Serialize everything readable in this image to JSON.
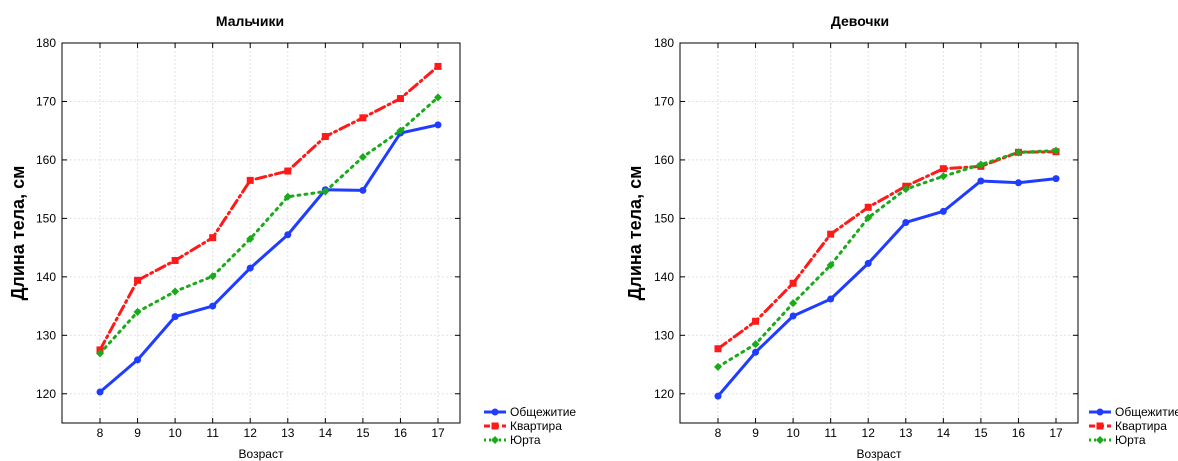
{
  "chart_data": [
    {
      "type": "line",
      "title": "Мальчики",
      "xlabel": "Возраст",
      "ylabel": "Длина тела, см",
      "categories": [
        "8",
        "9",
        "10",
        "11",
        "12",
        "13",
        "14",
        "15",
        "16",
        "17"
      ],
      "ylim": [
        115,
        180
      ],
      "yticks": [
        120,
        130,
        140,
        150,
        160,
        170,
        180
      ],
      "grid": true,
      "legend_position": "bottom-right",
      "series": [
        {
          "name": "Общежитие",
          "color": "#1f3cff",
          "values": [
            120.3,
            125.8,
            133.2,
            135.0,
            141.5,
            147.2,
            154.9,
            154.8,
            164.6,
            166.0
          ]
        },
        {
          "name": "Квартира",
          "color": "#ff1a1a",
          "values": [
            127.5,
            139.4,
            142.8,
            146.7,
            156.5,
            158.1,
            164.0,
            167.2,
            170.5,
            176.0
          ]
        },
        {
          "name": "Юрта",
          "color": "#1aaa1a",
          "values": [
            126.9,
            134.0,
            137.5,
            140.1,
            146.5,
            153.7,
            154.6,
            160.5,
            165.0,
            170.7
          ]
        }
      ]
    },
    {
      "type": "line",
      "title": "Девочки",
      "xlabel": "Возраст",
      "ylabel": "Длина тела, см",
      "categories": [
        "8",
        "9",
        "10",
        "11",
        "12",
        "13",
        "14",
        "15",
        "16",
        "17"
      ],
      "ylim": [
        115,
        180
      ],
      "yticks": [
        120,
        130,
        140,
        150,
        160,
        170,
        180
      ],
      "grid": true,
      "legend_position": "bottom-right",
      "series": [
        {
          "name": "Общежитие",
          "color": "#1f3cff",
          "values": [
            119.6,
            127.1,
            133.3,
            136.2,
            142.3,
            149.3,
            151.2,
            156.4,
            156.1,
            156.8
          ]
        },
        {
          "name": "Квартира",
          "color": "#ff1a1a",
          "values": [
            127.7,
            132.4,
            138.9,
            147.3,
            151.9,
            155.5,
            158.5,
            158.9,
            161.3,
            161.4
          ]
        },
        {
          "name": "Юрта",
          "color": "#1aaa1a",
          "values": [
            124.6,
            128.5,
            135.5,
            142.0,
            150.1,
            155.0,
            157.2,
            159.2,
            161.3,
            161.6
          ]
        }
      ]
    }
  ]
}
